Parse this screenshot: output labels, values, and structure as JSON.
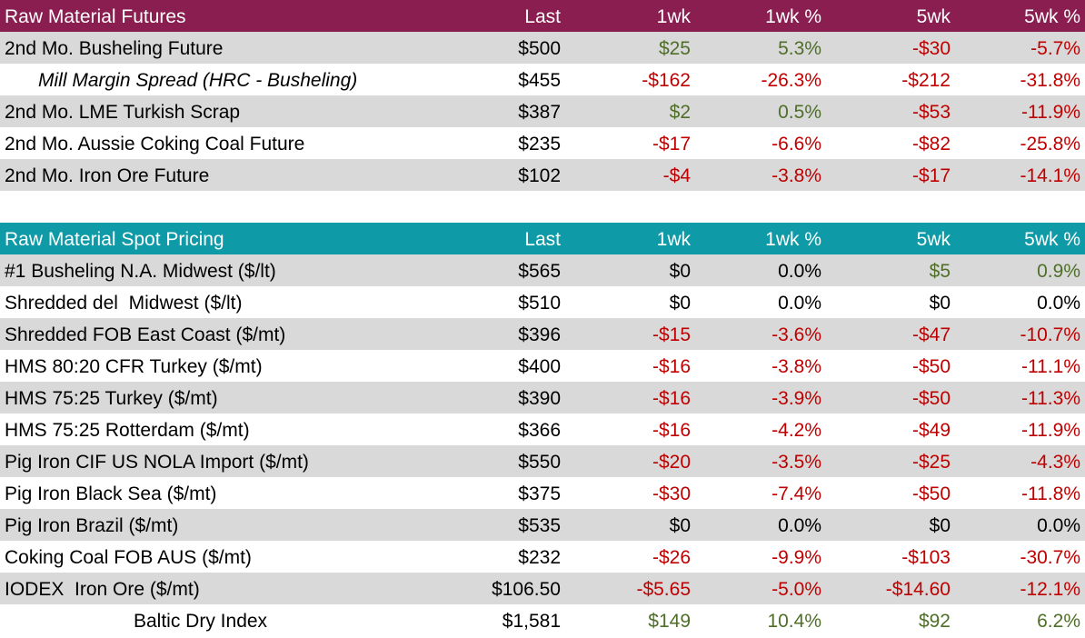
{
  "tables": [
    {
      "header": [
        "Raw Material Futures",
        "Last",
        "1wk",
        "1wk %",
        "5wk",
        "5wk %"
      ],
      "rows": [
        [
          "2nd Mo. Busheling Future",
          "$500",
          "$25",
          "5.3%",
          "-$30",
          "-5.7%"
        ],
        [
          "Mill Margin Spread (HRC - Busheling)",
          "$455",
          "-$162",
          "-26.3%",
          "-$212",
          "-31.8%"
        ],
        [
          "2nd Mo. LME Turkish Scrap",
          "$387",
          "$2",
          "0.5%",
          "-$53",
          "-11.9%"
        ],
        [
          "2nd Mo. Aussie Coking Coal Future",
          "$235",
          "-$17",
          "-6.6%",
          "-$82",
          "-25.8%"
        ],
        [
          "2nd Mo. Iron Ore Future",
          "$102",
          "-$4",
          "-3.8%",
          "-$17",
          "-14.1%"
        ]
      ]
    },
    {
      "header": [
        "Raw Material Spot Pricing",
        "Last",
        "1wk",
        "1wk %",
        "5wk",
        "5wk %"
      ],
      "rows": [
        [
          "#1 Busheling N.A. Midwest ($/lt)",
          "$565",
          "$0",
          "0.0%",
          "$5",
          "0.9%"
        ],
        [
          "Shredded del  Midwest ($/lt)",
          "$510",
          "$0",
          "0.0%",
          "$0",
          "0.0%"
        ],
        [
          "Shredded FOB East Coast ($/mt)",
          "$396",
          "-$15",
          "-3.6%",
          "-$47",
          "-10.7%"
        ],
        [
          "HMS 80:20 CFR Turkey ($/mt)",
          "$400",
          "-$16",
          "-3.8%",
          "-$50",
          "-11.1%"
        ],
        [
          "HMS 75:25 Turkey ($/mt)",
          "$390",
          "-$16",
          "-3.9%",
          "-$50",
          "-11.3%"
        ],
        [
          "HMS 75:25 Rotterdam ($/mt)",
          "$366",
          "-$16",
          "-4.2%",
          "-$49",
          "-11.9%"
        ],
        [
          "Pig Iron CIF US NOLA Import ($/mt)",
          "$550",
          "-$20",
          "-3.5%",
          "-$25",
          "-4.3%"
        ],
        [
          "Pig Iron Black Sea ($/mt)",
          "$375",
          "-$30",
          "-7.4%",
          "-$50",
          "-11.8%"
        ],
        [
          "Pig Iron Brazil ($/mt)",
          "$535",
          "$0",
          "0.0%",
          "$0",
          "0.0%"
        ],
        [
          "Coking Coal FOB AUS ($/mt)",
          "$232",
          "-$26",
          "-9.9%",
          "-$103",
          "-30.7%"
        ],
        [
          "IODEX  Iron Ore ($/mt)",
          "$106.50",
          "-$5.65",
          "-5.0%",
          "-$14.60",
          "-12.1%"
        ],
        [
          "Baltic Dry Index",
          "$1,581",
          "$149",
          "10.4%",
          "$92",
          "6.2%"
        ]
      ]
    }
  ]
}
